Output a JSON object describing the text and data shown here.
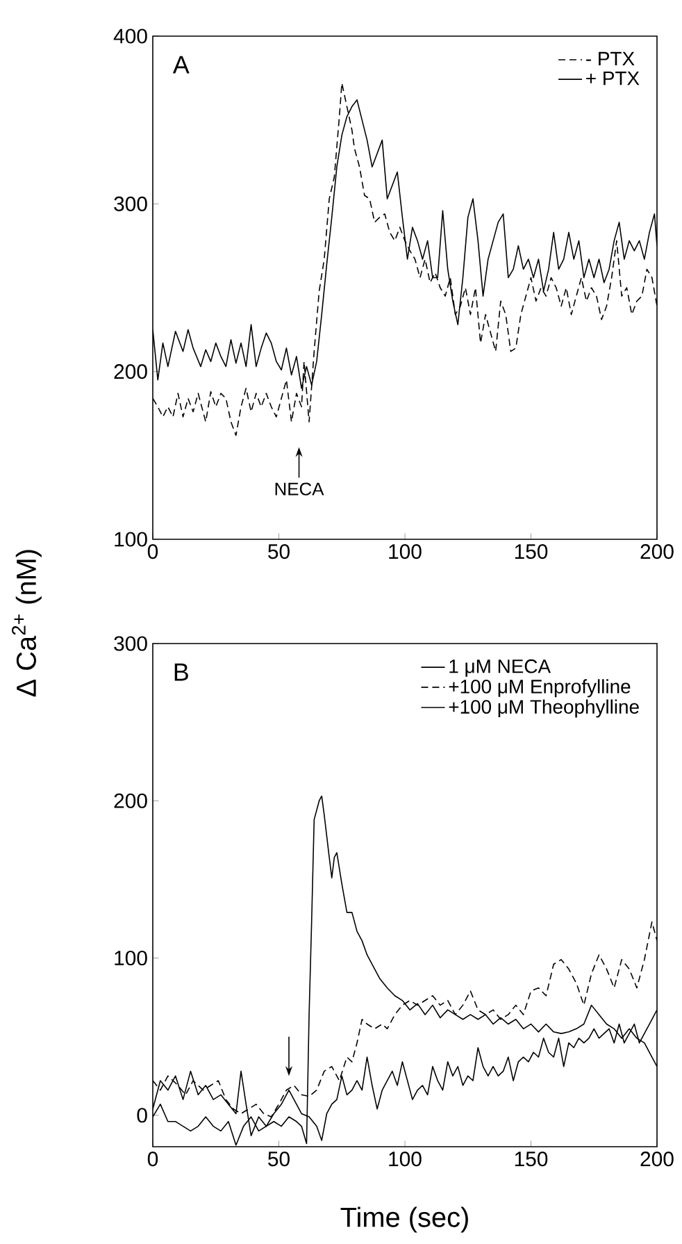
{
  "chart_data": [
    {
      "type": "line",
      "ylabel": "Δ Ca$^{2+}$ (nM)",
      "xlim": [
        0,
        200
      ],
      "ylim": [
        100,
        400
      ],
      "xticks": [
        0,
        50,
        100,
        150,
        200
      ],
      "yticks": [
        100,
        200,
        300,
        400
      ],
      "legend": "top right",
      "grid": false,
      "annotations": [
        "A",
        "NECA"
      ],
      "series": [
        {
          "name": "- PTX",
          "color": "#000000",
          "line_style": "dashed",
          "x": [
            0,
            2,
            4,
            6,
            8,
            10,
            12,
            14,
            16,
            18,
            21,
            23,
            25,
            27,
            29,
            31,
            33,
            35,
            37,
            39,
            41,
            43,
            45,
            47,
            49,
            51,
            53,
            55,
            57,
            59,
            60,
            62,
            64,
            66,
            68,
            70,
            72,
            74,
            75,
            77,
            79,
            80,
            82,
            84,
            86,
            88,
            90,
            92,
            94,
            96,
            98,
            100,
            102,
            104,
            106,
            108,
            110,
            112,
            114,
            116,
            118,
            120,
            122,
            124,
            126,
            128,
            130,
            132,
            134,
            136,
            138,
            140,
            142,
            144,
            146,
            148,
            150,
            152,
            154,
            156,
            158,
            160,
            162,
            164,
            166,
            168,
            170,
            172,
            174,
            176,
            178,
            180,
            182,
            184,
            186,
            188,
            190,
            192,
            194,
            196,
            198,
            200
          ],
          "values": [
            184,
            179,
            173,
            179,
            173,
            187,
            173,
            184,
            176,
            187,
            170,
            188,
            179,
            187,
            184,
            170,
            162,
            179,
            190,
            176,
            187,
            179,
            187,
            179,
            173,
            184,
            195,
            170,
            187,
            179,
            206,
            170,
            212,
            248,
            267,
            303,
            316,
            352,
            372,
            358,
            344,
            333,
            322,
            305,
            303,
            289,
            292,
            294,
            283,
            278,
            286,
            278,
            272,
            267,
            256,
            267,
            253,
            259,
            250,
            245,
            256,
            234,
            239,
            250,
            234,
            250,
            217,
            234,
            223,
            212,
            242,
            234,
            212,
            214,
            234,
            245,
            256,
            242,
            250,
            245,
            256,
            250,
            239,
            250,
            234,
            245,
            256,
            242,
            250,
            245,
            231,
            239,
            256,
            278,
            245,
            250,
            234,
            242,
            245,
            261,
            256,
            239
          ]
        },
        {
          "name": "+ PTX",
          "color": "#000000",
          "line_style": "solid",
          "x": [
            0,
            2,
            4,
            6,
            9,
            12,
            14,
            16,
            19,
            21,
            23,
            25,
            27,
            29,
            31,
            33,
            35,
            37,
            39,
            41,
            43,
            45,
            47,
            49,
            51,
            53,
            55,
            57,
            59,
            61,
            63,
            65,
            67,
            69,
            71,
            73,
            75,
            77,
            79,
            81,
            83,
            85,
            87,
            89,
            91,
            93,
            95,
            97,
            99,
            101,
            103,
            105,
            107,
            109,
            111,
            113,
            115,
            117,
            119,
            121,
            123,
            125,
            127,
            129,
            131,
            133,
            135,
            137,
            139,
            141,
            143,
            145,
            147,
            149,
            151,
            153,
            155,
            157,
            159,
            161,
            163,
            165,
            167,
            169,
            171,
            173,
            175,
            177,
            179,
            181,
            183,
            185,
            187,
            189,
            191,
            193,
            195,
            197,
            199,
            200
          ],
          "values": [
            225,
            195,
            217,
            203,
            224,
            212,
            225,
            214,
            203,
            213,
            206,
            217,
            209,
            203,
            219,
            205,
            217,
            203,
            228,
            203,
            214,
            223,
            217,
            206,
            201,
            214,
            198,
            209,
            190,
            203,
            192,
            206,
            234,
            264,
            292,
            322,
            341,
            352,
            358,
            362,
            350,
            338,
            322,
            330,
            338,
            303,
            311,
            319,
            292,
            267,
            286,
            278,
            267,
            278,
            256,
            256,
            296,
            261,
            242,
            228,
            256,
            292,
            303,
            278,
            245,
            267,
            278,
            289,
            294,
            256,
            261,
            275,
            261,
            267,
            256,
            267,
            248,
            261,
            283,
            261,
            267,
            283,
            267,
            278,
            256,
            267,
            256,
            267,
            253,
            261,
            278,
            289,
            267,
            278,
            272,
            278,
            267,
            283,
            294,
            275
          ]
        }
      ]
    },
    {
      "type": "line",
      "xlabel": "Time (sec)",
      "xlim": [
        0,
        200
      ],
      "ylim": [
        -20,
        300
      ],
      "xticks": [
        0,
        50,
        100,
        150,
        200
      ],
      "yticks": [
        0,
        100,
        200,
        300
      ],
      "legend": "top right",
      "grid": false,
      "annotations": [
        "B"
      ],
      "series": [
        {
          "name": "1 μM NECA",
          "color": "#000000",
          "line_style": "solid",
          "x": [
            0,
            3,
            6,
            9,
            12,
            15,
            18,
            21,
            24,
            27,
            30,
            33,
            36,
            39,
            42,
            45,
            48,
            51,
            54,
            57,
            59,
            61,
            62,
            63,
            64,
            66,
            67,
            68,
            70,
            71,
            72,
            73,
            75,
            77,
            79,
            81,
            83,
            85,
            88,
            90,
            93,
            96,
            99,
            102,
            105,
            108,
            111,
            114,
            117,
            120,
            123,
            126,
            129,
            132,
            135,
            138,
            141,
            144,
            147,
            150,
            153,
            156,
            159,
            162,
            165,
            168,
            171,
            174,
            177,
            180,
            183,
            186,
            189,
            192,
            195,
            198,
            200
          ],
          "values": [
            -1,
            7,
            -4,
            -4,
            -7,
            -10,
            -7,
            -1,
            -7,
            -10,
            -4,
            -19,
            -7,
            -1,
            -10,
            -7,
            -4,
            -7,
            -1,
            -4,
            -7,
            -18,
            64,
            123,
            188,
            200,
            203,
            191,
            164,
            151,
            164,
            167,
            147,
            129,
            129,
            117,
            111,
            102,
            93,
            87,
            81,
            76,
            73,
            67,
            71,
            64,
            70,
            62,
            67,
            64,
            61,
            64,
            61,
            64,
            58,
            62,
            58,
            61,
            55,
            58,
            53,
            58,
            53,
            52,
            53,
            55,
            58,
            70,
            64,
            58,
            55,
            49,
            55,
            49,
            46,
            37,
            31
          ]
        },
        {
          "name": "+100 μM Enprofylline",
          "color": "#000000",
          "line_style": "dashed",
          "x": [
            0,
            3,
            6,
            10,
            13,
            16,
            20,
            23,
            26,
            29,
            32,
            35,
            38,
            41,
            44,
            47,
            50,
            53,
            56,
            59,
            62,
            65,
            68,
            71,
            74,
            77,
            79,
            81,
            83,
            85,
            88,
            91,
            93,
            96,
            99,
            102,
            105,
            108,
            111,
            114,
            117,
            120,
            123,
            126,
            129,
            132,
            135,
            138,
            141,
            144,
            147,
            150,
            153,
            156,
            159,
            162,
            165,
            168,
            171,
            174,
            177,
            180,
            183,
            186,
            189,
            192,
            195,
            198,
            200
          ],
          "values": [
            22,
            16,
            25,
            19,
            13,
            22,
            16,
            19,
            22,
            10,
            4,
            1,
            4,
            7,
            1,
            -1,
            7,
            16,
            19,
            13,
            12,
            16,
            28,
            31,
            22,
            37,
            34,
            46,
            61,
            58,
            55,
            58,
            55,
            64,
            70,
            73,
            70,
            73,
            76,
            70,
            73,
            64,
            70,
            79,
            67,
            64,
            67,
            61,
            64,
            70,
            64,
            79,
            81,
            76,
            96,
            99,
            93,
            84,
            70,
            90,
            102,
            93,
            81,
            99,
            93,
            81,
            99,
            123,
            111
          ]
        },
        {
          "name": "+100 μM Theophylline",
          "color": "#000000",
          "line_style": "solid",
          "x": [
            0,
            3,
            6,
            9,
            12,
            15,
            18,
            21,
            24,
            27,
            30,
            33,
            35,
            37,
            39,
            42,
            45,
            48,
            51,
            54,
            56,
            59,
            62,
            65,
            67,
            69,
            71,
            73,
            75,
            77,
            79,
            81,
            83,
            85,
            87,
            89,
            91,
            93,
            95,
            97,
            99,
            101,
            103,
            105,
            107,
            109,
            111,
            113,
            115,
            117,
            119,
            121,
            123,
            125,
            127,
            129,
            131,
            133,
            135,
            137,
            139,
            141,
            143,
            145,
            147,
            149,
            151,
            153,
            155,
            157,
            159,
            161,
            163,
            165,
            167,
            169,
            171,
            173,
            175,
            177,
            179,
            181,
            183,
            185,
            187,
            189,
            191,
            193,
            195,
            197,
            200
          ],
          "values": [
            4,
            22,
            16,
            25,
            10,
            28,
            13,
            19,
            10,
            13,
            7,
            1,
            28,
            7,
            -13,
            -1,
            -7,
            1,
            7,
            16,
            10,
            1,
            -1,
            -7,
            -16,
            1,
            7,
            10,
            25,
            13,
            16,
            22,
            16,
            37,
            19,
            4,
            16,
            22,
            28,
            19,
            34,
            22,
            10,
            16,
            19,
            13,
            31,
            22,
            16,
            34,
            25,
            31,
            19,
            25,
            22,
            43,
            31,
            25,
            31,
            25,
            28,
            37,
            22,
            34,
            37,
            34,
            40,
            37,
            49,
            40,
            37,
            49,
            31,
            46,
            43,
            49,
            46,
            49,
            55,
            49,
            52,
            55,
            46,
            58,
            46,
            52,
            58,
            46,
            52,
            58,
            67
          ]
        }
      ]
    }
  ]
}
